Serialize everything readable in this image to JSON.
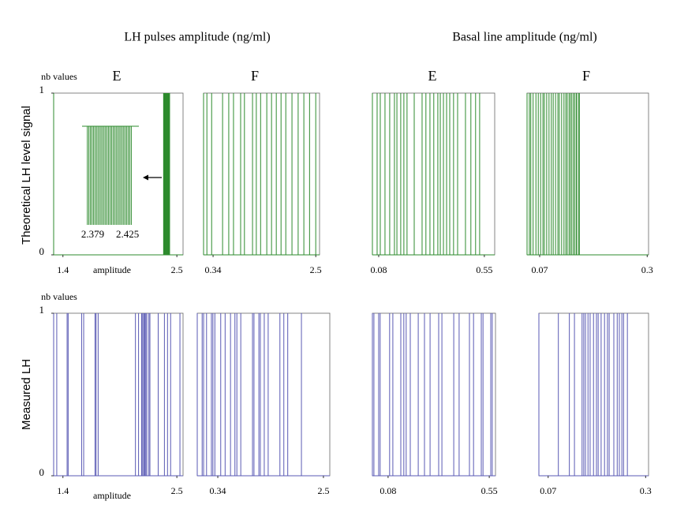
{
  "group_titles": [
    "LH pulses amplitude  (ng/ml)",
    "Basal line amplitude  (ng/ml)"
  ],
  "row_labels": [
    "Theoretical  LH level signal",
    "Measured LH"
  ],
  "chart_data": [
    {
      "type": "rug",
      "title": "E",
      "ylabel": "nb values",
      "xlabel": "amplitude",
      "color": "#2e8b2e",
      "xlim": [
        1.31,
        2.56
      ],
      "xticks": [
        1.4,
        2.5
      ],
      "ylim": [
        0,
        1
      ],
      "yticks": [
        0,
        1
      ],
      "x": [
        2.372,
        2.374,
        2.376,
        2.378,
        2.38,
        2.382,
        2.384,
        2.386,
        2.388,
        2.39,
        2.392,
        2.394,
        2.396,
        2.398,
        2.4,
        2.402,
        2.404,
        2.406,
        2.408,
        2.41,
        2.412,
        2.414,
        2.416,
        2.418,
        2.42,
        2.422,
        2.424,
        2.426,
        2.428,
        2.43
      ],
      "inset": {
        "xlim": [
          2.365,
          2.44
        ],
        "xticks": [
          2.379,
          2.425
        ]
      }
    },
    {
      "type": "rug",
      "title": "F",
      "color": "#2e8b2e",
      "xlim": [
        0.14,
        2.58
      ],
      "xticks": [
        0.34,
        2.5
      ],
      "ylim": [
        0,
        1
      ],
      "x": [
        0.21,
        0.31,
        0.54,
        0.67,
        0.77,
        0.92,
        1.0,
        1.17,
        1.25,
        1.34,
        1.47,
        1.57,
        1.67,
        1.77,
        1.87,
        2.0,
        2.13,
        2.25,
        2.37,
        2.5
      ]
    },
    {
      "type": "rug",
      "title": "E",
      "color": "#2e8b2e",
      "xlim": [
        0.052,
        0.596
      ],
      "xticks": [
        0.08,
        0.55
      ],
      "ylim": [
        0,
        1
      ],
      "x": [
        0.073,
        0.087,
        0.108,
        0.129,
        0.15,
        0.161,
        0.178,
        0.192,
        0.206,
        0.238,
        0.273,
        0.29,
        0.308,
        0.325,
        0.343,
        0.354,
        0.368,
        0.382,
        0.396,
        0.413,
        0.431,
        0.466,
        0.49,
        0.511,
        0.529
      ]
    },
    {
      "type": "rug",
      "title": "F",
      "color": "#2e8b2e",
      "xlim": [
        0.043,
        0.303
      ],
      "xticks": [
        0.07,
        0.3
      ],
      "ylim": [
        0,
        1
      ],
      "x": [
        0.048,
        0.051,
        0.056,
        0.062,
        0.067,
        0.072,
        0.077,
        0.08,
        0.085,
        0.09,
        0.095,
        0.099,
        0.104,
        0.109,
        0.112,
        0.117,
        0.122,
        0.126,
        0.129,
        0.133,
        0.136,
        0.139,
        0.143,
        0.144,
        0.148,
        0.149,
        0.153,
        0.155
      ]
    },
    {
      "type": "rug",
      "ylabel": "nb values",
      "xlabel": "amplitude",
      "color": "#5a5ab4",
      "xlim": [
        1.31,
        2.56
      ],
      "xticks": [
        1.4,
        2.5
      ],
      "ylim": [
        0,
        1
      ],
      "yticks": [
        0,
        1
      ],
      "x": [
        1.34,
        1.44,
        1.45,
        1.58,
        1.6,
        1.71,
        1.72,
        1.74,
        2.1,
        2.13,
        2.16,
        2.17,
        2.18,
        2.19,
        2.19,
        2.2,
        2.21,
        2.23,
        2.24,
        2.32,
        2.38,
        2.41,
        2.44,
        2.53
      ]
    },
    {
      "type": "rug",
      "color": "#5a5ab4",
      "xlim": [
        -0.08,
        2.63
      ],
      "xticks": [
        0.34,
        2.5
      ],
      "ylim": [
        0,
        1
      ],
      "x": [
        0.02,
        0.05,
        0.11,
        0.21,
        0.24,
        0.28,
        0.4,
        0.49,
        0.6,
        0.69,
        0.73,
        0.81,
        1.05,
        1.08,
        1.18,
        1.21,
        1.29,
        1.37,
        1.61,
        1.69,
        1.77,
        2.05
      ]
    },
    {
      "type": "rug",
      "color": "#5a5ab4",
      "xlim": [
        0.007,
        0.579
      ],
      "xticks": [
        0.08,
        0.55
      ],
      "ylim": [
        0,
        1
      ],
      "x": [
        0.014,
        0.036,
        0.043,
        0.087,
        0.102,
        0.139,
        0.153,
        0.164,
        0.183,
        0.22,
        0.249,
        0.275,
        0.315,
        0.33,
        0.385,
        0.41,
        0.458,
        0.477,
        0.513,
        0.521,
        0.557,
        0.564
      ]
    },
    {
      "type": "rug",
      "color": "#5a5ab4",
      "xlim": [
        0.048,
        0.307
      ],
      "xticks": [
        0.07,
        0.3
      ],
      "ylim": [
        0,
        1
      ],
      "x": [
        0.094,
        0.12,
        0.132,
        0.15,
        0.154,
        0.158,
        0.164,
        0.169,
        0.177,
        0.184,
        0.188,
        0.195,
        0.203,
        0.21,
        0.214,
        0.225,
        0.233,
        0.238,
        0.244,
        0.248,
        0.257
      ]
    }
  ]
}
